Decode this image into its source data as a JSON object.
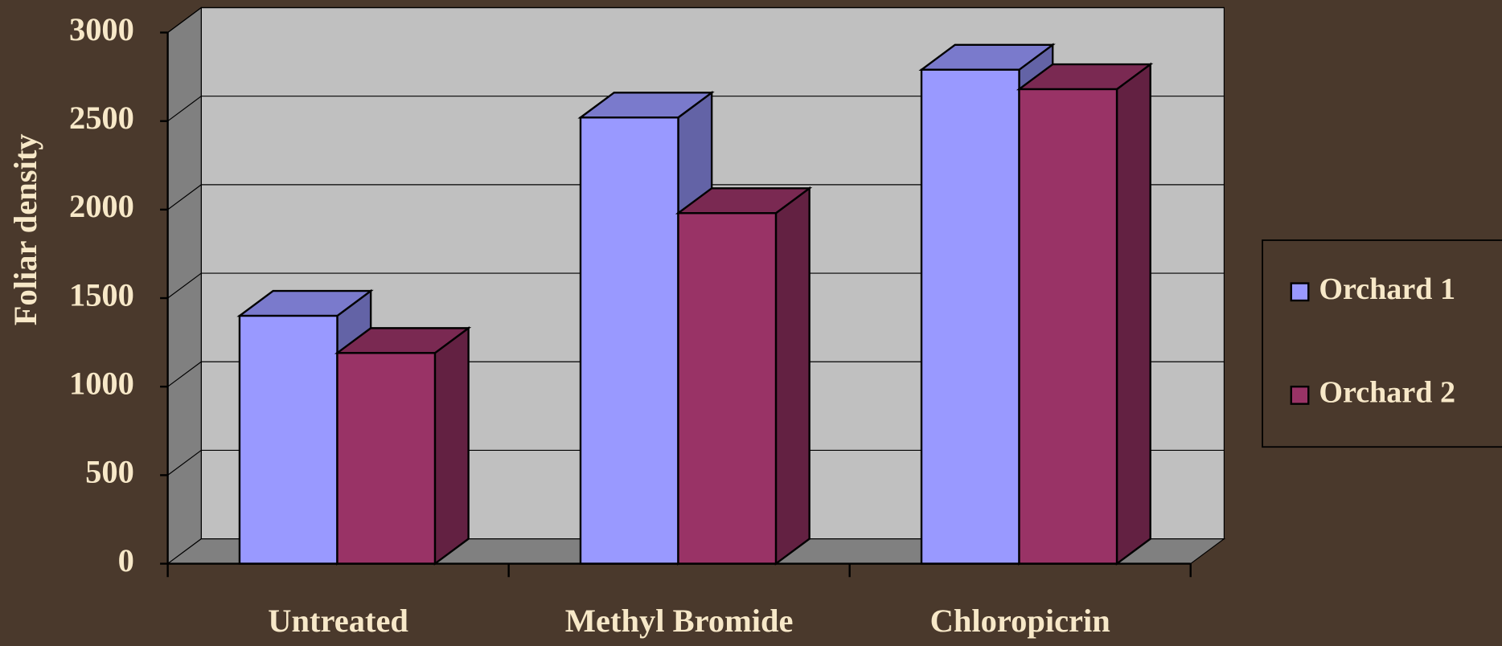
{
  "chart_data": {
    "type": "bar3d",
    "y_label": "Foliar density",
    "categories": [
      "Untreated",
      "Methyl Bromide",
      "Chloropicrin"
    ],
    "series": [
      {
        "name": "Orchard 1",
        "color": "#9999ff",
        "values": [
          1400,
          2520,
          2790
        ]
      },
      {
        "name": "Orchard 2",
        "color": "#993366",
        "values": [
          1190,
          1980,
          2680
        ]
      }
    ],
    "ylim": [
      0,
      3000
    ],
    "yticks": [
      0,
      500,
      1000,
      1500,
      2000,
      2500,
      3000
    ],
    "grid": true,
    "legend": "right"
  }
}
